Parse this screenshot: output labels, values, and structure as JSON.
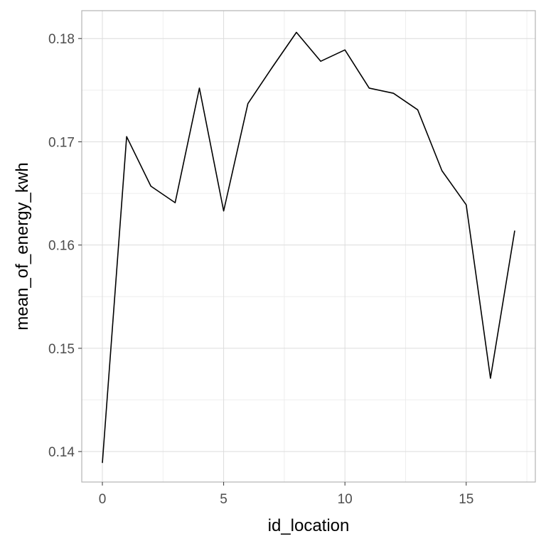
{
  "chart_data": {
    "type": "line",
    "title": "",
    "xlabel": "id_location",
    "ylabel": "mean_of_energy_kwh",
    "xlim": [
      -0.85,
      17.85
    ],
    "ylim": [
      0.13705,
      0.1827
    ],
    "x_ticks": [
      0,
      5,
      10,
      15
    ],
    "x_minor": [
      2.5,
      7.5,
      12.5,
      17.5
    ],
    "y_ticks": [
      0.14,
      0.15,
      0.16,
      0.17,
      0.18
    ],
    "y_minor": [
      0.145,
      0.155,
      0.165,
      0.175
    ],
    "x_tick_labels": [
      "0",
      "5",
      "10",
      "15"
    ],
    "y_tick_labels": [
      "0.14",
      "0.15",
      "0.16",
      "0.17",
      "0.18"
    ],
    "grid": true,
    "legend": "none",
    "colors": {
      "line": "#000000",
      "grid_major": "#dcdcdc",
      "grid_minor": "#eeeeee",
      "panel_border": "#b3b3b3"
    },
    "series": [
      {
        "x": [
          0,
          1,
          2,
          3,
          4,
          5,
          6,
          7,
          8,
          9,
          10,
          11,
          12,
          13,
          14,
          15,
          16,
          17
        ],
        "values": [
          0.1389,
          0.1705,
          0.1657,
          0.1641,
          0.1752,
          0.1633,
          0.1737,
          0.1772,
          0.1806,
          0.1778,
          0.1789,
          0.1752,
          0.1747,
          0.1731,
          0.1672,
          0.1639,
          0.1471,
          0.1614
        ]
      }
    ]
  }
}
